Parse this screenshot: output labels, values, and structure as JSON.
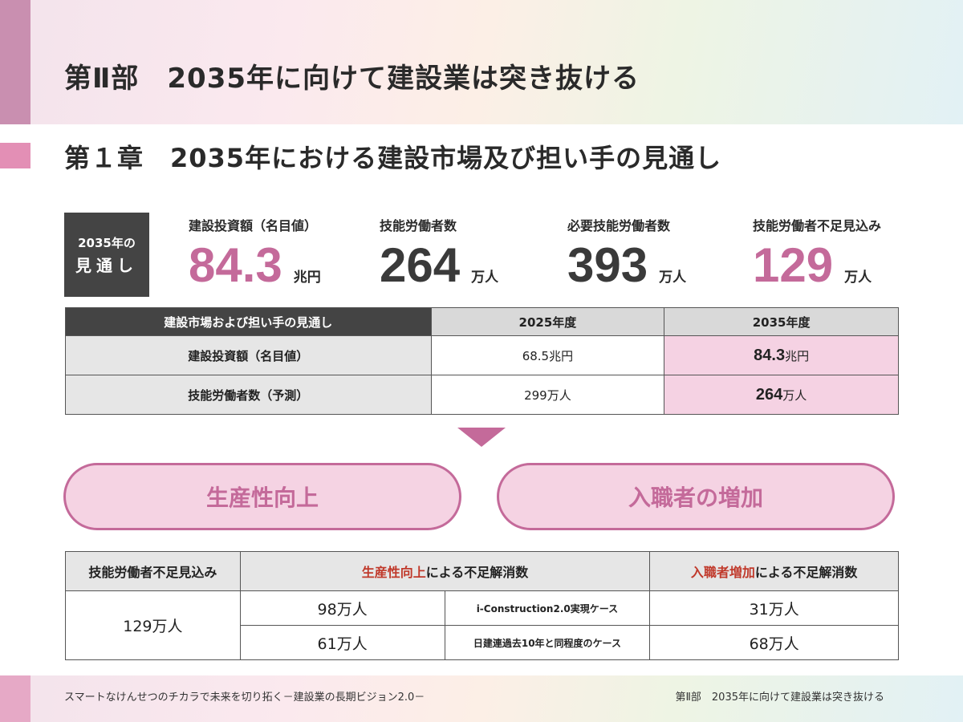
{
  "header": {
    "part_title": "第Ⅱ部　2035年に向けて建設業は突き抜ける",
    "chapter_title": "第１章　2035年における建設市場及び担い手の見通し"
  },
  "outlook_box": {
    "line1": "2035年の",
    "line2": "見通し"
  },
  "stats": [
    {
      "label": "建設投資額（名目値）",
      "value": "84.3",
      "unit": "兆円",
      "color": "#c46a9a"
    },
    {
      "label": "技能労働者数",
      "value": "264",
      "unit": "万人",
      "color": "#3a3a3a"
    },
    {
      "label": "必要技能労働者数",
      "value": "393",
      "unit": "万人",
      "color": "#3a3a3a"
    },
    {
      "label": "技能労働者不足見込み",
      "value": "129",
      "unit": "万人",
      "color": "#c46a9a"
    }
  ],
  "table1": {
    "headers": [
      "建設市場および担い手の見通し",
      "2025年度",
      "2035年度"
    ],
    "rows": [
      {
        "label": "建設投資額（名目値）",
        "v2025": "68.5兆円",
        "v2035_num": "84.3",
        "v2035_unit": "兆円"
      },
      {
        "label": "技能労働者数（予測）",
        "v2025": "299万人",
        "v2035_num": "264",
        "v2035_unit": "万人"
      }
    ]
  },
  "pills": {
    "left": "生産性向上",
    "right": "入職者の増加"
  },
  "table2": {
    "h1": "技能労働者不足見込み",
    "h2_red": "生産性向上",
    "h2_rest": "による不足解消数",
    "h3_red": "入職者増加",
    "h3_rest": "による不足解消数",
    "shortage": "129万人",
    "rows": [
      {
        "productivity": "98万人",
        "case": "i-Construction2.0実現ケース",
        "entrants": "31万人"
      },
      {
        "productivity": "61万人",
        "case": "日建連過去10年と同程度のケース",
        "entrants": "68万人"
      }
    ]
  },
  "footer": {
    "left": "スマートなけんせつのチカラで未来を切り拓く－建設業の長期ビジョン2.0－",
    "right": "第Ⅱ部　2035年に向けて建設業は突き抜ける"
  },
  "colors": {
    "accent": "#c46a9a",
    "pink_fill": "#f5d3e3",
    "dark_box": "#444444",
    "red_text": "#c0392b"
  }
}
